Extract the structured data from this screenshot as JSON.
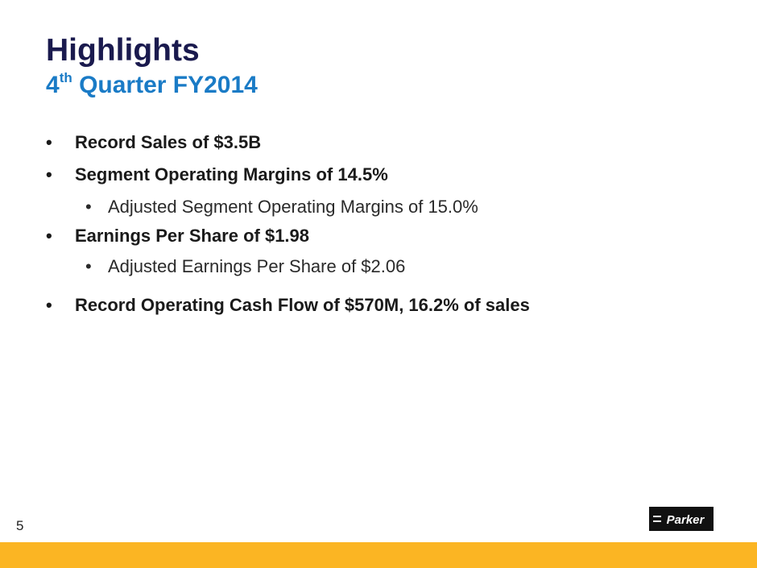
{
  "slide": {
    "title": "Highlights",
    "subtitle_prefix": "4",
    "subtitle_superscript": "th",
    "subtitle_rest": " Quarter FY2014",
    "bullets": [
      {
        "level": 1,
        "marker": "•",
        "text": "Record Sales of $3.5B"
      },
      {
        "level": 1,
        "marker": "•",
        "text": "Segment Operating Margins of 14.5%"
      },
      {
        "level": 2,
        "marker": "•",
        "text": "Adjusted Segment Operating Margins of 15.0%"
      },
      {
        "level": 1,
        "marker": "•",
        "text": "Earnings Per Share of $1.98"
      },
      {
        "level": 2,
        "marker": "•",
        "text": "Adjusted Earnings Per Share of $2.06"
      },
      {
        "level": 1,
        "marker": "•",
        "text": "Record Operating Cash Flow of $570M, 16.2% of sales"
      }
    ],
    "page_number": "5",
    "logo_text": "Parker"
  },
  "colors": {
    "title": "#1a1a4e",
    "subtitle": "#1a7bc6",
    "footer_bar": "#fbb523",
    "logo_background": "#111111"
  }
}
